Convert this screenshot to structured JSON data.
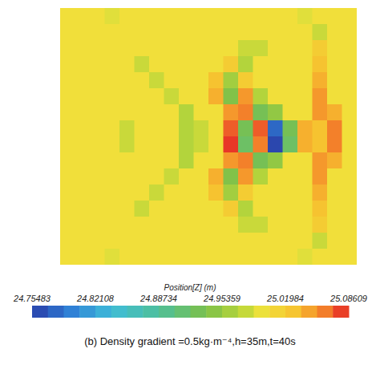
{
  "chart_data": {
    "type": "heatmap",
    "title": "(b) Density gradient =0.5kg·m⁻⁴,h=35m,t=40s",
    "colorbar_title": "Position[Z] (m)",
    "colorbar_range": [
      24.75483,
      25.08609
    ],
    "colorbar_ticks": [
      24.75483,
      24.82108,
      24.88734,
      24.95359,
      25.01984,
      25.08609
    ],
    "tick_labels": false,
    "cells": [
      [
        25,
        25,
        25,
        24.99,
        25,
        25,
        25,
        25,
        25,
        25,
        25,
        25,
        25,
        25,
        25,
        25,
        24.99,
        25,
        25,
        25
      ],
      [
        25,
        25,
        25,
        25,
        25,
        25,
        25,
        25,
        25,
        25,
        25,
        25,
        25,
        25,
        25,
        25,
        25,
        24.98,
        25,
        25
      ],
      [
        25,
        25,
        25,
        25,
        25,
        25,
        25,
        25,
        25,
        25,
        25,
        25,
        24.98,
        24.98,
        25,
        25,
        25,
        25.02,
        25,
        25
      ],
      [
        25,
        25,
        25,
        25,
        25,
        24.98,
        25,
        25,
        25,
        25,
        25,
        25.02,
        24.97,
        25,
        25,
        25,
        25,
        25.03,
        25,
        25
      ],
      [
        25,
        25,
        25,
        25,
        25,
        25,
        24.98,
        25,
        25,
        25,
        25.03,
        24.96,
        25.02,
        25,
        25,
        25,
        25,
        25.04,
        25,
        25
      ],
      [
        25,
        25,
        25,
        25,
        25,
        25,
        25,
        24.98,
        25,
        25,
        25.04,
        24.94,
        25.05,
        24.97,
        25,
        25,
        25,
        25.05,
        25,
        25
      ],
      [
        25,
        25,
        25,
        25,
        25,
        25,
        25,
        25,
        24.97,
        25,
        25,
        25.05,
        25.06,
        24.93,
        24.95,
        25,
        25,
        25.05,
        25.04,
        25
      ],
      [
        25,
        25,
        25,
        25,
        24.98,
        25,
        25,
        25,
        24.97,
        24.98,
        25,
        25.07,
        24.93,
        25.07,
        24.78,
        24.93,
        25.04,
        25.03,
        25.06,
        25
      ],
      [
        25,
        25,
        25,
        25,
        24.98,
        25,
        25,
        25,
        24.97,
        24.98,
        25,
        25.08,
        24.92,
        25.06,
        24.76,
        24.92,
        25.04,
        25.03,
        25.06,
        25
      ],
      [
        25,
        25,
        25,
        25,
        25,
        25,
        25,
        25,
        24.97,
        25,
        25,
        25.05,
        25.06,
        24.93,
        24.95,
        25,
        25,
        25.05,
        25.04,
        25
      ],
      [
        25,
        25,
        25,
        25,
        25,
        25,
        25,
        24.98,
        25,
        25,
        25.04,
        24.94,
        25.05,
        24.97,
        25,
        25,
        25,
        25.05,
        25,
        25
      ],
      [
        25,
        25,
        25,
        25,
        25,
        25,
        24.98,
        25,
        25,
        25,
        25.03,
        24.96,
        25.02,
        25,
        25,
        25,
        25,
        25.04,
        25,
        25
      ],
      [
        25,
        25,
        25,
        25,
        25,
        24.98,
        25,
        25,
        25,
        25,
        25,
        25.02,
        24.97,
        25,
        25,
        25,
        25,
        25.03,
        25,
        25
      ],
      [
        25,
        25,
        25,
        25,
        25,
        25,
        25,
        25,
        25,
        25,
        25,
        25,
        24.98,
        24.98,
        25,
        25,
        25,
        25.02,
        25,
        25
      ],
      [
        25,
        25,
        25,
        25,
        25,
        25,
        25,
        25,
        25,
        25,
        25,
        25,
        25,
        25,
        25,
        25,
        25,
        24.98,
        25,
        25
      ],
      [
        25,
        25,
        25,
        24.99,
        25,
        25,
        25,
        25,
        25,
        25,
        25,
        25,
        25,
        25,
        25,
        25,
        24.99,
        25,
        25,
        25
      ]
    ]
  }
}
